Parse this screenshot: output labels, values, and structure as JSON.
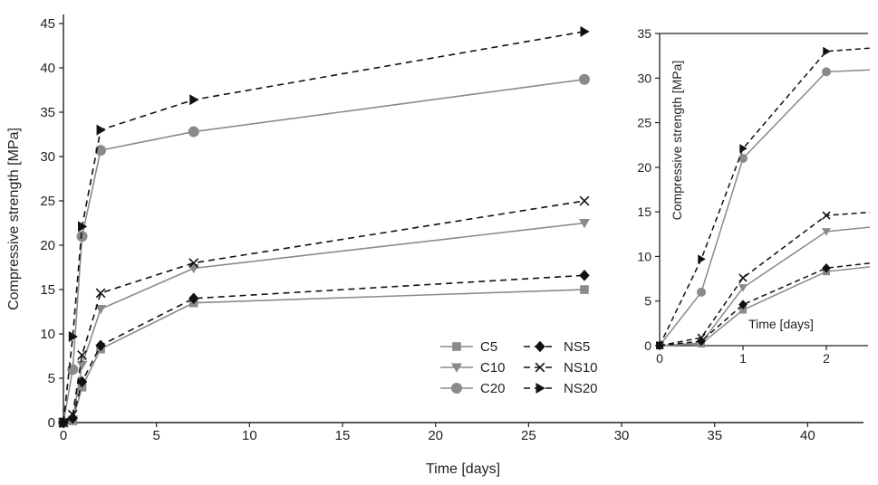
{
  "chart_data": [
    {
      "type": "line",
      "role": "main",
      "xlabel": "Time [days]",
      "ylabel": "Compressive strength [MPa]",
      "xlim": [
        0,
        43
      ],
      "ylim": [
        0,
        45
      ],
      "xticks": [
        0,
        5,
        10,
        15,
        20,
        25,
        30,
        35,
        40
      ],
      "yticks": [
        0,
        5,
        10,
        15,
        20,
        25,
        30,
        35,
        40,
        45
      ],
      "legend_position": "bottom-center",
      "series": [
        {
          "name": "C5",
          "marker": "square",
          "dash": false,
          "color": "#8a8a8a",
          "x": [
            0,
            0.5,
            1,
            2,
            7,
            28
          ],
          "y": [
            0,
            0.2,
            4.0,
            8.3,
            13.5,
            15.0
          ]
        },
        {
          "name": "C10",
          "marker": "triangle-down",
          "dash": false,
          "color": "#8a8a8a",
          "x": [
            0,
            0.5,
            1,
            2,
            7,
            28
          ],
          "y": [
            0,
            0.3,
            6.5,
            12.8,
            17.4,
            22.5
          ]
        },
        {
          "name": "C20",
          "marker": "circle",
          "dash": false,
          "color": "#8a8a8a",
          "x": [
            0,
            0.5,
            1,
            2,
            7,
            28
          ],
          "y": [
            0,
            6.0,
            21.0,
            30.7,
            32.8,
            38.7
          ]
        },
        {
          "name": "NS5",
          "marker": "diamond",
          "dash": true,
          "color": "#111111",
          "x": [
            0,
            0.5,
            1,
            2,
            7,
            28
          ],
          "y": [
            0,
            0.5,
            4.6,
            8.7,
            14.0,
            16.6
          ]
        },
        {
          "name": "NS10",
          "marker": "x",
          "dash": true,
          "color": "#111111",
          "x": [
            0,
            0.5,
            1,
            2,
            7,
            28
          ],
          "y": [
            0,
            0.9,
            7.6,
            14.6,
            18.0,
            25.0
          ]
        },
        {
          "name": "NS20",
          "marker": "triangle-right",
          "dash": true,
          "color": "#111111",
          "x": [
            0,
            0.5,
            1,
            2,
            7,
            28
          ],
          "y": [
            0,
            9.7,
            22.1,
            33.0,
            36.4,
            44.1
          ]
        }
      ]
    },
    {
      "type": "line",
      "role": "inset",
      "xlabel": "Time [days]",
      "ylabel": "Compressive strength [MPa]",
      "xlim": [
        0,
        2.5
      ],
      "ylim": [
        0,
        35
      ],
      "xticks": [
        0,
        1,
        2
      ],
      "yticks": [
        0,
        5,
        10,
        15,
        20,
        25,
        30,
        35
      ],
      "series_ref": "main"
    }
  ]
}
